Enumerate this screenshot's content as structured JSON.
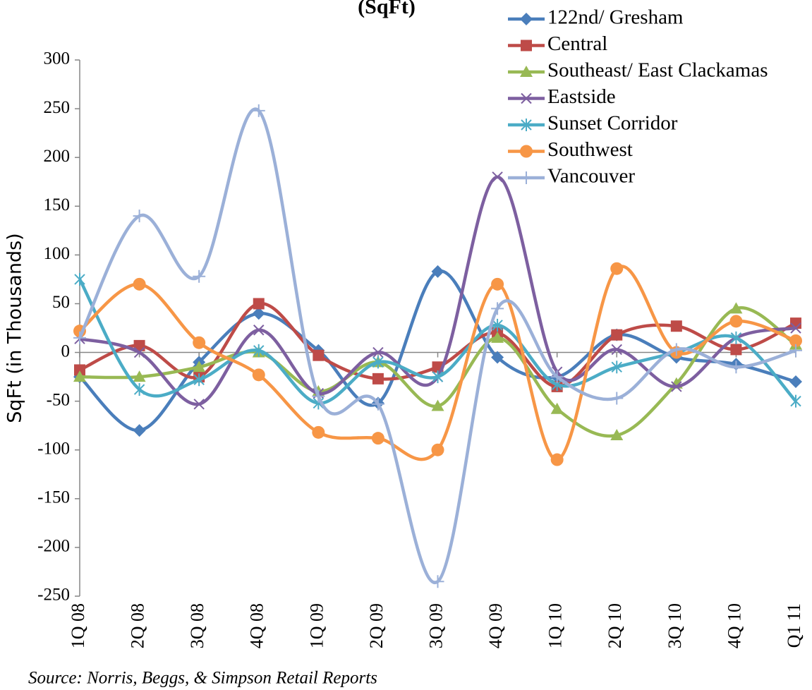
{
  "chart_data": {
    "type": "line",
    "title": "(SqFt)",
    "y_label": "SqFt (in Thousands)",
    "source": "Source:  Norris, Beggs, & Simpson Retail Reports",
    "categories": [
      "1Q 08",
      "2Q 08",
      "3Q 08",
      "4Q 08",
      "1Q 09",
      "2Q 09",
      "3Q 09",
      "4Q 09",
      "1Q 10",
      "2Q 10",
      "3Q 10",
      "4Q 10",
      "Q1 11"
    ],
    "ylim": [
      -250,
      300
    ],
    "yticks": [
      -250,
      -200,
      -150,
      -100,
      -50,
      0,
      50,
      100,
      150,
      200,
      250,
      300
    ],
    "smooth": true,
    "legend": "top-right",
    "series": [
      {
        "name": "122nd/ Gresham",
        "color": "#4a7ebb",
        "marker": "diamond",
        "values": [
          -25,
          -80,
          -10,
          40,
          2,
          -52,
          83,
          -5,
          -25,
          18,
          -5,
          -12,
          -30
        ]
      },
      {
        "name": "Central",
        "color": "#be4b48",
        "marker": "square",
        "values": [
          -18,
          7,
          -25,
          50,
          -3,
          -27,
          -15,
          20,
          -35,
          18,
          27,
          3,
          30
        ]
      },
      {
        "name": "Southeast/ East Clackamas",
        "color": "#98b954",
        "marker": "triangle",
        "values": [
          -25,
          -25,
          -15,
          0,
          -40,
          -10,
          -55,
          15,
          -58,
          -85,
          -32,
          45,
          8
        ]
      },
      {
        "name": "Eastside",
        "color": "#7d5fa0",
        "marker": "x",
        "values": [
          14,
          0,
          -53,
          23,
          -42,
          0,
          -25,
          180,
          -20,
          3,
          -35,
          15,
          25
        ]
      },
      {
        "name": "Sunset Corridor",
        "color": "#4bacc6",
        "marker": "asterisk",
        "values": [
          75,
          -38,
          -28,
          2,
          -52,
          -10,
          -25,
          28,
          -33,
          -15,
          0,
          15,
          -50
        ]
      },
      {
        "name": "Southwest",
        "color": "#f79646",
        "marker": "circle",
        "values": [
          22,
          70,
          10,
          -23,
          -82,
          -88,
          -100,
          70,
          -110,
          86,
          0,
          32,
          12
        ]
      },
      {
        "name": "Vancouver",
        "color": "#9bb0d8",
        "marker": "plus",
        "values": [
          15,
          140,
          78,
          248,
          -45,
          -53,
          -235,
          45,
          -25,
          -47,
          3,
          -15,
          2
        ]
      }
    ]
  }
}
